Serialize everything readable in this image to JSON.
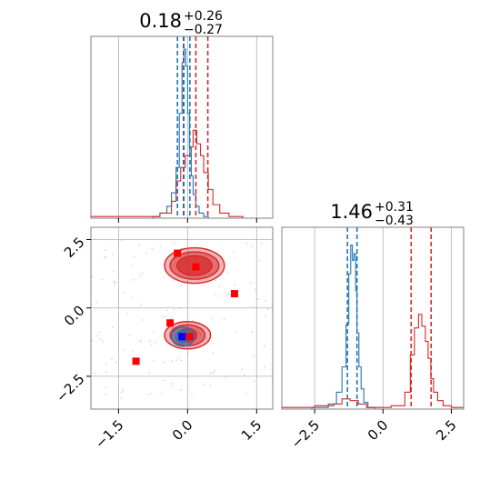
{
  "colors": {
    "primary": "#1f77b4",
    "secondary": "#d62728",
    "marker_blue": "#0000ff",
    "marker_red": "#ff0000",
    "grid": "#b0b0b0",
    "axis": "#808080"
  },
  "chart_data": [
    {
      "type": "histogram",
      "panel": "param-1-marginal",
      "title_value": "0.18",
      "title_plus": "+0.26",
      "title_minus": "−0.27",
      "xlim": [
        -2.1,
        1.85
      ],
      "grid": true,
      "quantile_lines": {
        "blue": [
          -0.22,
          -0.08,
          0.05
        ],
        "red": [
          -0.09,
          0.18,
          0.44
        ]
      },
      "series": [
        {
          "color": "blue",
          "bin_edges": [
            -0.75,
            -0.6,
            -0.45,
            -0.35,
            -0.25,
            -0.18,
            -0.12,
            -0.08,
            -0.04,
            0.0,
            0.04,
            0.08,
            0.12,
            0.18,
            0.25,
            0.35,
            0.45,
            0.6
          ],
          "counts": [
            0.01,
            0.03,
            0.07,
            0.15,
            0.3,
            0.62,
            0.92,
            1.0,
            0.9,
            0.62,
            0.42,
            0.25,
            0.14,
            0.07,
            0.03,
            0.01,
            0.0
          ]
        },
        {
          "color": "red",
          "bin_edges": [
            -2.1,
            -1.5,
            -1.0,
            -0.6,
            -0.35,
            -0.25,
            -0.15,
            -0.05,
            0.05,
            0.12,
            0.2,
            0.28,
            0.35,
            0.45,
            0.55,
            0.7,
            0.9,
            1.2,
            1.85
          ],
          "counts": [
            0.01,
            0.01,
            0.01,
            0.03,
            0.1,
            0.22,
            0.3,
            0.37,
            0.42,
            0.52,
            0.44,
            0.37,
            0.27,
            0.17,
            0.08,
            0.03,
            0.01,
            0.0
          ]
        }
      ]
    },
    {
      "type": "scatter-contour",
      "panel": "joint",
      "xlim": [
        -2.1,
        1.85
      ],
      "ylim": [
        -3.7,
        2.95
      ],
      "xticks": [
        -1.5,
        0.0,
        1.5
      ],
      "xtick_labels": [
        "−1.5",
        "0.0",
        "1.5"
      ],
      "yticks": [
        -2.5,
        0.0,
        2.5
      ],
      "ytick_labels": [
        "−2.5",
        "0.0",
        "2.5"
      ],
      "grid": true,
      "reference_lines": {
        "y": [
          2.5,
          0.0,
          -2.5
        ]
      },
      "red_contours": [
        {
          "cx": 0.15,
          "cy": 1.55,
          "levels": [
            [
              0.65,
              0.65
            ],
            [
              0.53,
              0.5
            ],
            [
              0.38,
              0.36
            ]
          ]
        },
        {
          "cx": 0.0,
          "cy": -1.0,
          "levels": [
            [
              0.5,
              0.5
            ],
            [
              0.38,
              0.38
            ],
            [
              0.2,
              0.25
            ]
          ]
        }
      ],
      "blue_contours": [
        {
          "cx": -0.1,
          "cy": -1.05,
          "levels": [
            [
              0.25,
              0.35
            ],
            [
              0.16,
              0.22
            ],
            [
              0.07,
              0.1
            ]
          ]
        }
      ],
      "red_markers": [
        {
          "x": -0.22,
          "y": 2.0
        },
        {
          "x": 0.18,
          "y": 1.5
        },
        {
          "x": 1.02,
          "y": 0.52
        },
        {
          "x": -0.38,
          "y": -0.55
        },
        {
          "x": -1.12,
          "y": -1.95
        },
        {
          "x": 0.05,
          "y": -1.05
        }
      ],
      "blue_markers": [
        {
          "x": -0.12,
          "y": -1.05
        }
      ]
    },
    {
      "type": "histogram",
      "panel": "param-2-marginal",
      "title_value": "1.46",
      "title_plus": "+0.31",
      "title_minus": "−0.43",
      "xlim": [
        -3.7,
        2.95
      ],
      "xticks": [
        -2.5,
        0.0,
        2.5
      ],
      "xtick_labels": [
        "−2.5",
        "0.0",
        "2.5"
      ],
      "grid": true,
      "quantile_lines": {
        "blue": [
          -1.3,
          -0.95
        ],
        "red": [
          1.03,
          1.76
        ]
      },
      "series": [
        {
          "color": "blue",
          "bin_edges": [
            -2.6,
            -2.0,
            -1.7,
            -1.5,
            -1.35,
            -1.25,
            -1.18,
            -1.12,
            -1.06,
            -1.0,
            -0.95,
            -0.88,
            -0.8,
            -0.7,
            -0.55,
            -0.3
          ],
          "counts": [
            0.01,
            0.03,
            0.1,
            0.25,
            0.5,
            0.8,
            0.97,
            0.88,
            0.92,
            0.7,
            0.45,
            0.25,
            0.12,
            0.04,
            0.01
          ]
        },
        {
          "color": "red",
          "bin_edges": [
            -3.7,
            -2.5,
            -1.8,
            -1.5,
            -1.2,
            -0.9,
            -0.6,
            -0.2,
            0.3,
            0.8,
            1.0,
            1.15,
            1.3,
            1.42,
            1.55,
            1.65,
            1.75,
            1.85,
            2.0,
            2.2,
            2.5,
            2.95
          ],
          "counts": [
            0.01,
            0.02,
            0.03,
            0.06,
            0.05,
            0.03,
            0.01,
            0.01,
            0.02,
            0.1,
            0.32,
            0.48,
            0.56,
            0.49,
            0.4,
            0.3,
            0.18,
            0.1,
            0.05,
            0.02,
            0.01
          ]
        }
      ]
    }
  ]
}
